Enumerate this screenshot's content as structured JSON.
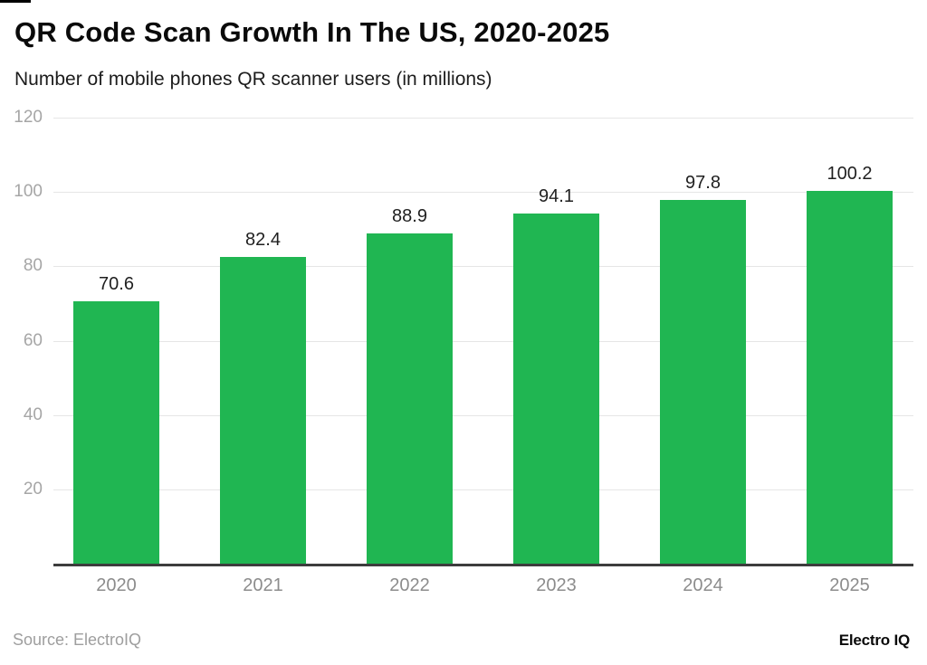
{
  "page": {
    "background": "#ffffff"
  },
  "header": {
    "title": "QR Code Scan Growth In The US, 2020-2025",
    "subtitle": "Number of mobile phones QR scanner users (in millions)"
  },
  "footer": {
    "source": "Source: ElectroIQ",
    "brand": "Electro IQ"
  },
  "chart_data": {
    "type": "bar",
    "title": "QR Code Scan Growth In The US, 2020-2025",
    "subtitle": "Number of mobile phones QR scanner users (in millions)",
    "categories": [
      "2020",
      "2021",
      "2022",
      "2023",
      "2024",
      "2025"
    ],
    "values": [
      70.6,
      82.4,
      88.9,
      94.1,
      97.8,
      100.2
    ],
    "value_labels": [
      "70.6",
      "82.4",
      "88.9",
      "94.1",
      "97.8",
      "100.2"
    ],
    "xlabel": "",
    "ylabel": "",
    "ylim": [
      0,
      120
    ],
    "yticks": [
      20,
      40,
      60,
      80,
      100,
      120
    ],
    "grid": "horizontal-only",
    "legend": "none",
    "colors": {
      "bar": "#20b652",
      "gridline": "#e6e6e6",
      "axis_line": "#3d3d3d",
      "y_tick_label": "#a6a6a6",
      "x_tick_label": "#8c8c8c",
      "value_label": "#1f1f1f",
      "source_text": "#9e9e9e"
    }
  }
}
